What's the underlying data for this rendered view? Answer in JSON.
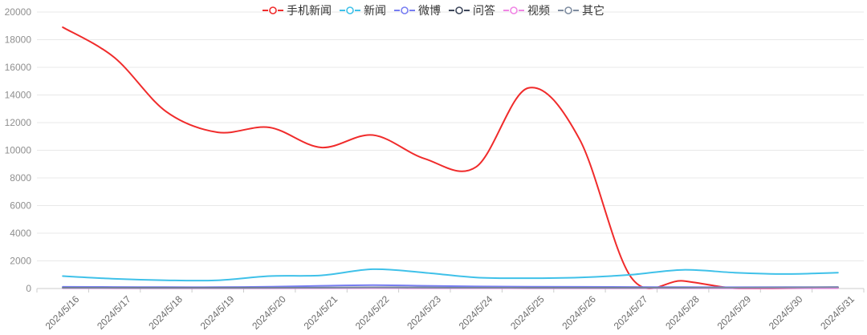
{
  "page": {
    "background": "#ffffff"
  },
  "axis_style": {
    "grid_color": "#e8e8e8",
    "axis_color": "#cccccc",
    "y_label_color": "#8f8f8f",
    "x_label_color": "#6b6b6b"
  },
  "chart_data": {
    "type": "line",
    "smooth": true,
    "title": "",
    "xlabel": "",
    "ylabel": "",
    "legend_position": "top-center",
    "grid": true,
    "ylim": [
      0,
      20000
    ],
    "y_ticks": [
      0,
      2000,
      4000,
      6000,
      8000,
      10000,
      12000,
      14000,
      16000,
      18000,
      20000
    ],
    "x": [
      "2024/5/16",
      "2024/5/17",
      "2024/5/18",
      "2024/5/19",
      "2024/5/20",
      "2024/5/21",
      "2024/5/22",
      "2024/5/23",
      "2024/5/24",
      "2024/5/25",
      "2024/5/26",
      "2024/5/27",
      "2024/5/28",
      "2024/5/29",
      "2024/5/30",
      "2024/5/31"
    ],
    "series": [
      {
        "name": "手机新闻",
        "color": "#f02b2b",
        "values": [
          18900,
          16700,
          12800,
          11300,
          11650,
          10200,
          11100,
          9400,
          8800,
          14500,
          10800,
          800,
          550,
          20,
          20,
          50
        ]
      },
      {
        "name": "新闻",
        "color": "#3fc1e9",
        "values": [
          900,
          700,
          600,
          600,
          900,
          950,
          1400,
          1150,
          800,
          750,
          800,
          1000,
          1350,
          1150,
          1050,
          1150
        ]
      },
      {
        "name": "微博",
        "color": "#777df2",
        "values": [
          120,
          110,
          100,
          100,
          130,
          200,
          250,
          200,
          150,
          130,
          120,
          110,
          100,
          90,
          100,
          110
        ]
      },
      {
        "name": "问答",
        "color": "#3c465a",
        "values": [
          60,
          55,
          50,
          50,
          55,
          65,
          80,
          70,
          60,
          55,
          50,
          55,
          60,
          55,
          60,
          70
        ]
      },
      {
        "name": "视频",
        "color": "#f085e4",
        "values": [
          25,
          20,
          18,
          15,
          18,
          25,
          30,
          25,
          22,
          20,
          18,
          20,
          25,
          20,
          22,
          25
        ]
      },
      {
        "name": "其它",
        "color": "#7e8ca0",
        "values": [
          45,
          40,
          35,
          32,
          38,
          50,
          70,
          60,
          50,
          45,
          40,
          45,
          50,
          60,
          75,
          90
        ]
      }
    ]
  }
}
